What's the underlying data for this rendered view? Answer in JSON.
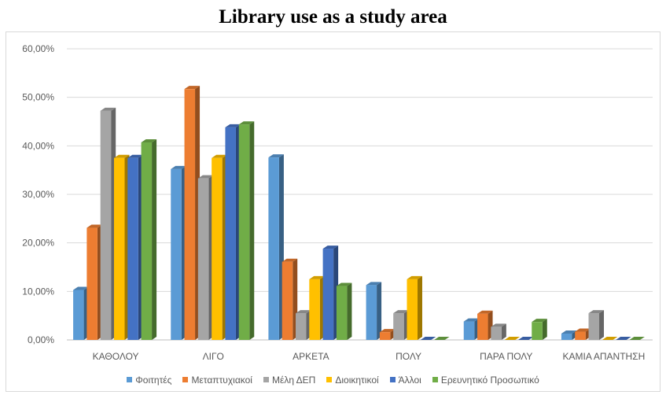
{
  "chart_data": {
    "type": "bar",
    "title": "Library use as a study area",
    "categories": [
      "ΚΑΘΟΛΟΥ",
      "ΛΙΓΟ",
      "ΑΡΚΕΤΑ",
      "ΠΟΛΥ",
      "ΠΑΡΑ ΠΟΛΥ",
      "ΚΑΜΙΑ ΑΠΑΝΤΗΣΗ"
    ],
    "series": [
      {
        "name": "Φοιτητές",
        "color": "#5b9bd5",
        "values": [
          10.3,
          35.2,
          37.6,
          11.3,
          3.8,
          1.3
        ]
      },
      {
        "name": "Μεταπτυχιακοί",
        "color": "#ed7d31",
        "values": [
          23.1,
          51.7,
          16.1,
          1.6,
          5.4,
          1.7
        ]
      },
      {
        "name": "Μέλη ΔΕΠ",
        "color": "#a5a5a5",
        "values": [
          47.2,
          33.3,
          5.5,
          5.5,
          2.7,
          5.5
        ]
      },
      {
        "name": "Διοικητικοί",
        "color": "#ffc000",
        "values": [
          37.5,
          37.5,
          12.5,
          12.5,
          0,
          0
        ]
      },
      {
        "name": "Άλλοι",
        "color": "#4472c4",
        "values": [
          37.5,
          43.8,
          18.8,
          0,
          0,
          0
        ]
      },
      {
        "name": "Ερευνητικό Προσωπικό",
        "color": "#70ad47",
        "values": [
          40.7,
          44.4,
          11.1,
          0,
          3.7,
          0
        ]
      }
    ],
    "y_ticks": [
      "0,00%",
      "10,00%",
      "20,00%",
      "30,00%",
      "40,00%",
      "50,00%",
      "60,00%"
    ],
    "ylim": [
      0,
      60
    ],
    "grid": true,
    "legend_position": "bottom"
  }
}
